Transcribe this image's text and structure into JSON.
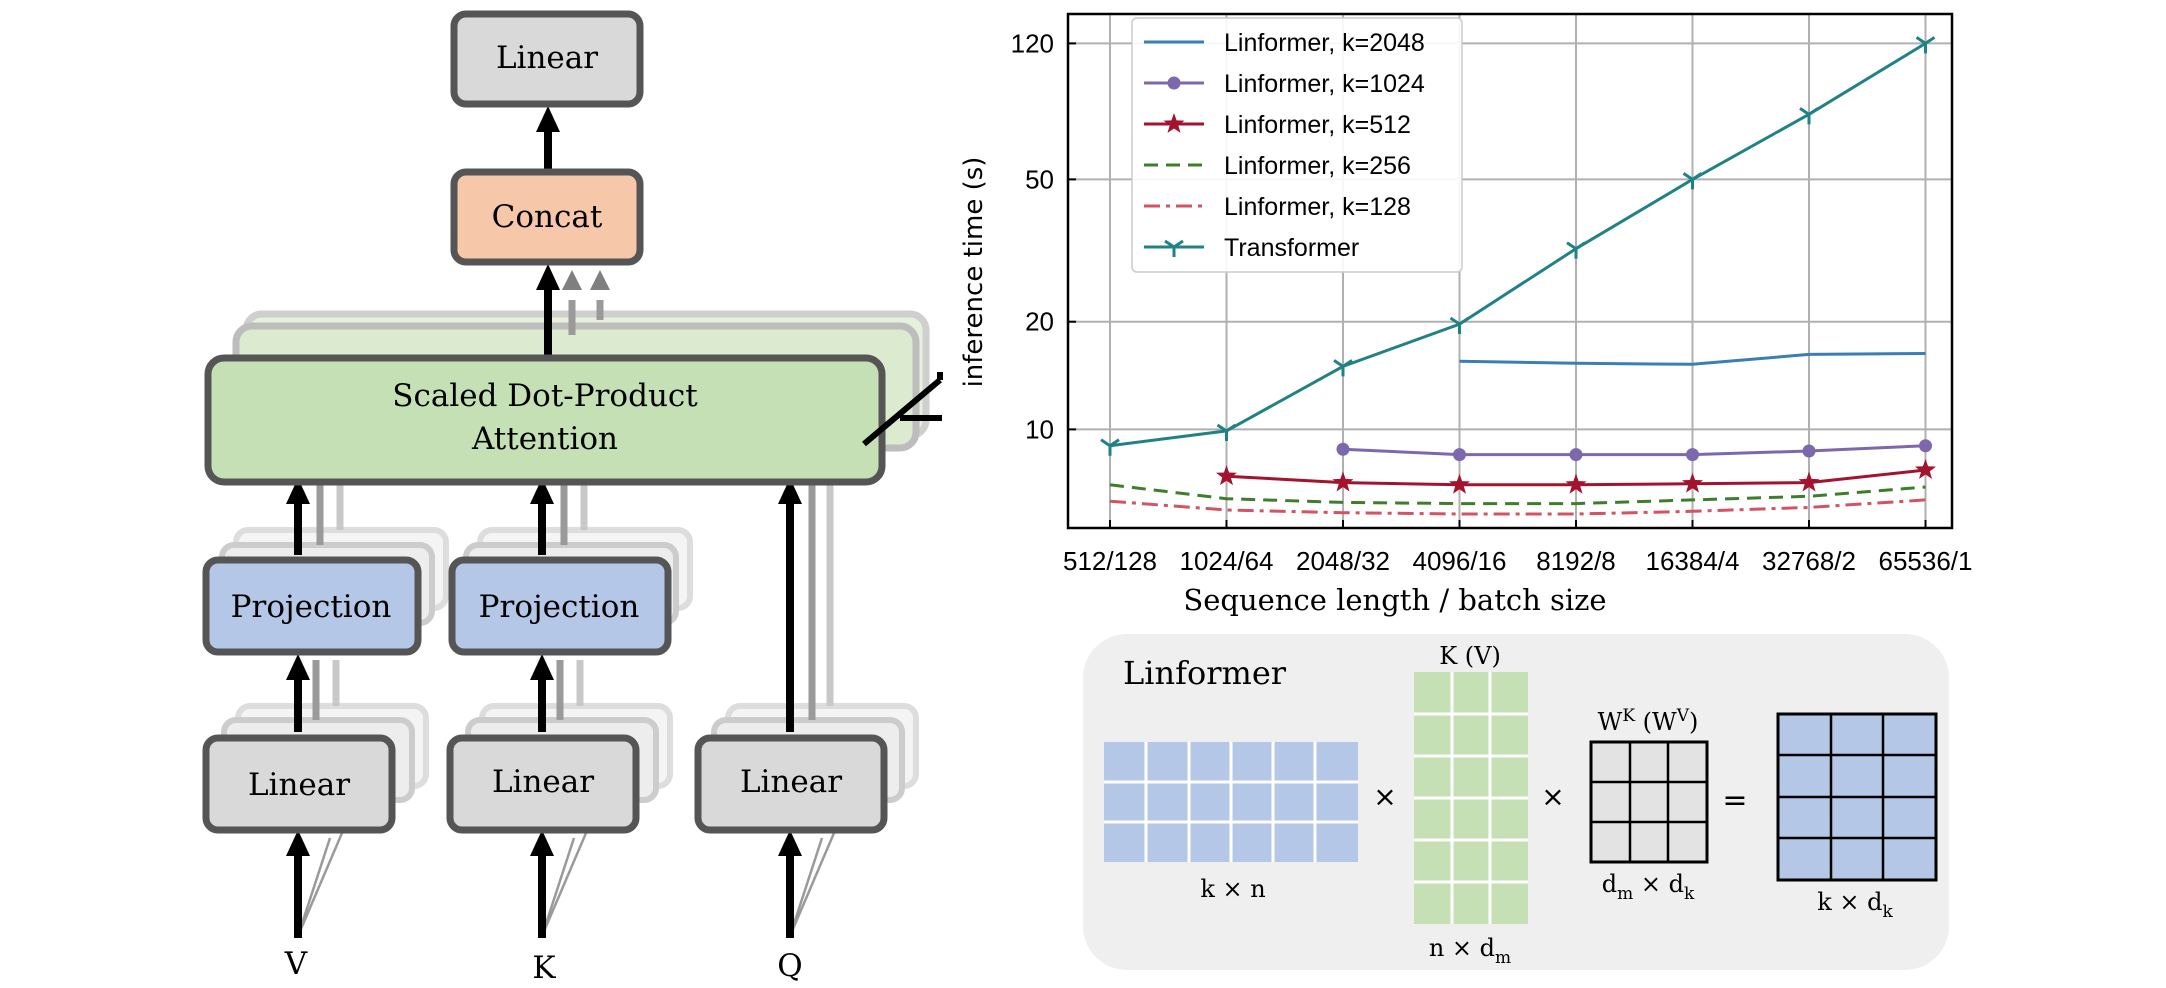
{
  "diagram": {
    "top_linear": "Linear",
    "concat": "Concat",
    "attention_line1": "Scaled Dot-Product",
    "attention_line2": "Attention",
    "projection_v": "Projection",
    "projection_k": "Projection",
    "linear_v": "Linear",
    "linear_k": "Linear",
    "linear_q": "Linear",
    "input_v": "V",
    "input_k": "K",
    "input_q": "Q",
    "colors": {
      "linear_fill": "#d9d9d9",
      "concat_fill": "#f7c7a9",
      "attention_fill": "#c5e0b4",
      "projection_fill": "#b4c7e7",
      "border": "#555555"
    }
  },
  "chart_data": {
    "type": "line",
    "xlabel": "Sequence length / batch size",
    "ylabel": "inference time (s)",
    "yscale": "log",
    "ylim": [
      5.3,
      145
    ],
    "grid": true,
    "legend_position": "top-left",
    "categories": [
      "512/128",
      "1024/64",
      "2048/32",
      "4096/16",
      "8192/8",
      "16384/4",
      "32768/2",
      "65536/1"
    ],
    "yticks": [
      10,
      20,
      50,
      120
    ],
    "series": [
      {
        "name": "Linformer, k=2048",
        "color": "#3b7db5",
        "dash": "solid",
        "marker": "none",
        "values": [
          null,
          null,
          null,
          15.5,
          15.3,
          15.2,
          16.2,
          16.3
        ]
      },
      {
        "name": "Linformer, k=1024",
        "color": "#7d68ad",
        "dash": "solid",
        "marker": "circle",
        "values": [
          null,
          null,
          8.8,
          8.5,
          8.5,
          8.5,
          8.7,
          9.0
        ]
      },
      {
        "name": "Linformer, k=512",
        "color": "#a3132d",
        "dash": "solid",
        "marker": "star",
        "values": [
          null,
          7.4,
          7.1,
          7.0,
          7.0,
          7.05,
          7.1,
          7.7
        ]
      },
      {
        "name": "Linformer, k=256",
        "color": "#3e7e2b",
        "dash": "dashed",
        "marker": "none",
        "values": [
          7.0,
          6.4,
          6.25,
          6.2,
          6.2,
          6.35,
          6.5,
          6.9
        ]
      },
      {
        "name": "Linformer, k=128",
        "color": "#d15364",
        "dash": "dashdot",
        "marker": "none",
        "values": [
          6.3,
          5.95,
          5.85,
          5.8,
          5.8,
          5.9,
          6.05,
          6.35
        ]
      },
      {
        "name": "Transformer",
        "color": "#218286",
        "dash": "solid",
        "marker": "tri",
        "values": [
          9.0,
          9.9,
          15.0,
          19.7,
          32.0,
          50.0,
          76.0,
          120.0
        ]
      }
    ]
  },
  "linformer_box": {
    "title": "Linformer",
    "mult1": "×",
    "mult2": "×",
    "equals": "=",
    "p_label": "k × n",
    "kv_top": "K (V)",
    "kv_bottom_main": "n × d",
    "kv_bottom_sub": "m",
    "w_top_main": "W",
    "w_top_sup1": "K",
    "w_top_mid": " (W",
    "w_top_sup2": "V",
    "w_top_end": ")",
    "w_bottom_main1": "d",
    "w_bottom_sub1": "m",
    "w_bottom_mid": " × d",
    "w_bottom_sub2": "k",
    "res_bottom_main": "k × d",
    "res_bottom_sub": "k",
    "colors": {
      "panel": "#efefef",
      "p": "#b4c7e7",
      "kv": "#c5e0b4",
      "w": "#e3e3e3",
      "result": "#b4c7e7"
    }
  }
}
